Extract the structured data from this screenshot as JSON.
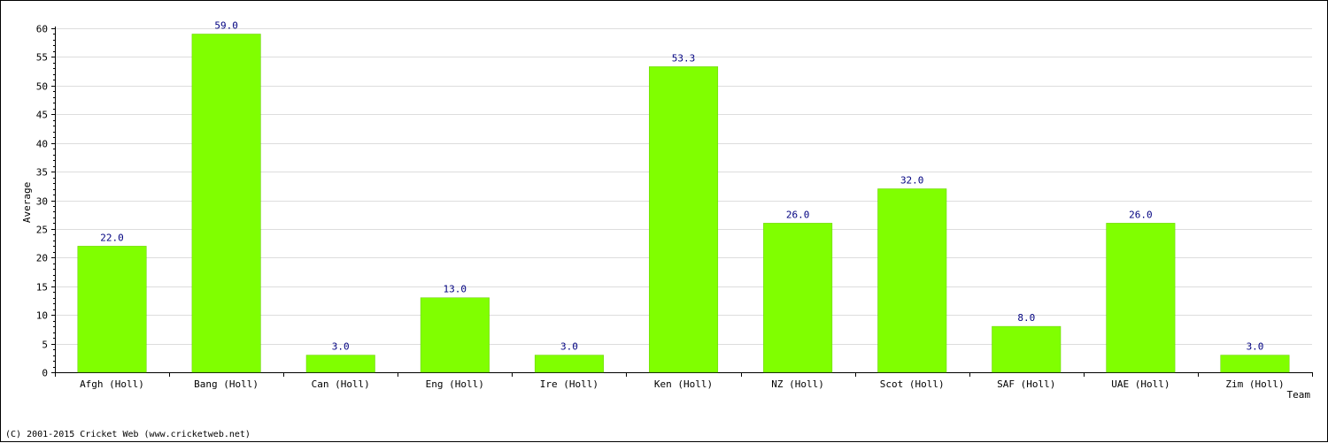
{
  "chart_data": {
    "type": "bar",
    "title": "",
    "xlabel": "Team",
    "ylabel": "Average",
    "ylim": [
      0,
      60
    ],
    "yticks": [
      0,
      5,
      10,
      15,
      20,
      25,
      30,
      35,
      40,
      45,
      50,
      55,
      60
    ],
    "grid": true,
    "categories": [
      "Afgh (Holl)",
      "Bang (Holl)",
      "Can (Holl)",
      "Eng (Holl)",
      "Ire (Holl)",
      "Ken (Holl)",
      "NZ (Holl)",
      "Scot (Holl)",
      "SAF (Holl)",
      "UAE (Holl)",
      "Zim (Holl)"
    ],
    "values": [
      22.0,
      59.0,
      3.0,
      13.0,
      3.0,
      53.3,
      26.0,
      32.0,
      8.0,
      26.0,
      3.0
    ],
    "value_labels": [
      "22.0",
      "59.0",
      "3.0",
      "13.0",
      "3.0",
      "53.3",
      "26.0",
      "32.0",
      "8.0",
      "26.0",
      "3.0"
    ],
    "bar_color": "#80ff00",
    "label_color": "#000080"
  },
  "footer": {
    "copyright": "(C) 2001-2015 Cricket Web (www.cricketweb.net)"
  }
}
